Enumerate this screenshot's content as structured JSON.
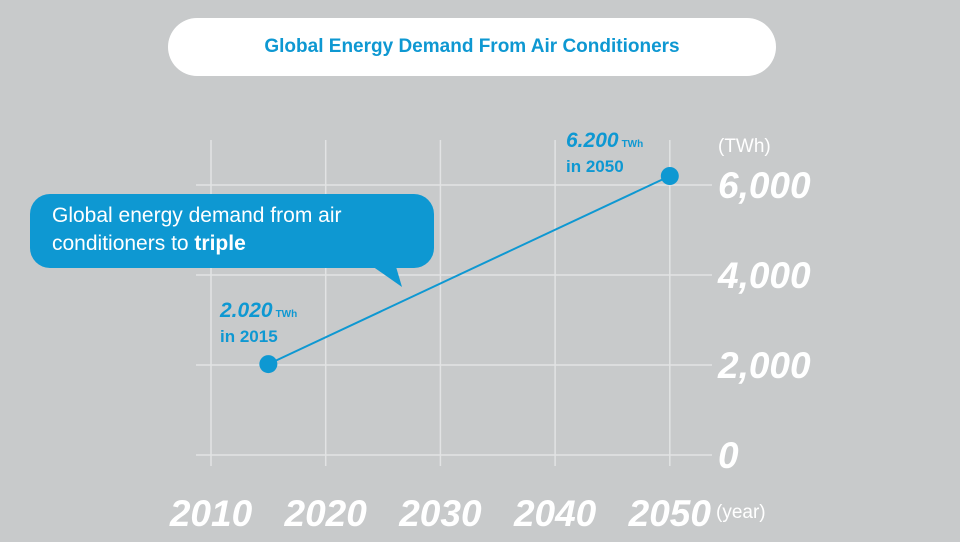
{
  "colors": {
    "background": "#c8cacb",
    "accent": "#0e98d2",
    "grid": "#e2e3e4",
    "text": "#ffffff"
  },
  "chart_data": {
    "type": "line",
    "title": "Global Energy Demand From Air Conditioners",
    "xlabel": "(year)",
    "ylabel": "(TWh)",
    "x_ticks": [
      "2010",
      "2020",
      "2030",
      "2040",
      "2050"
    ],
    "y_ticks": [
      "0",
      "2,000",
      "4,000",
      "6,000"
    ],
    "xlim": [
      2010,
      2050
    ],
    "ylim": [
      0,
      6000
    ],
    "grid": true,
    "series": [
      {
        "x": [
          2015,
          2050
        ],
        "y": [
          2020,
          6200
        ]
      }
    ],
    "annotations": [
      {
        "value": "2.020",
        "unit": "TWh",
        "label": "in 2015"
      },
      {
        "value": "6.200",
        "unit": "TWh",
        "label": "in 2050"
      }
    ],
    "callout": {
      "text": "Global energy demand from air conditioners to ",
      "emphasis": "triple"
    }
  }
}
